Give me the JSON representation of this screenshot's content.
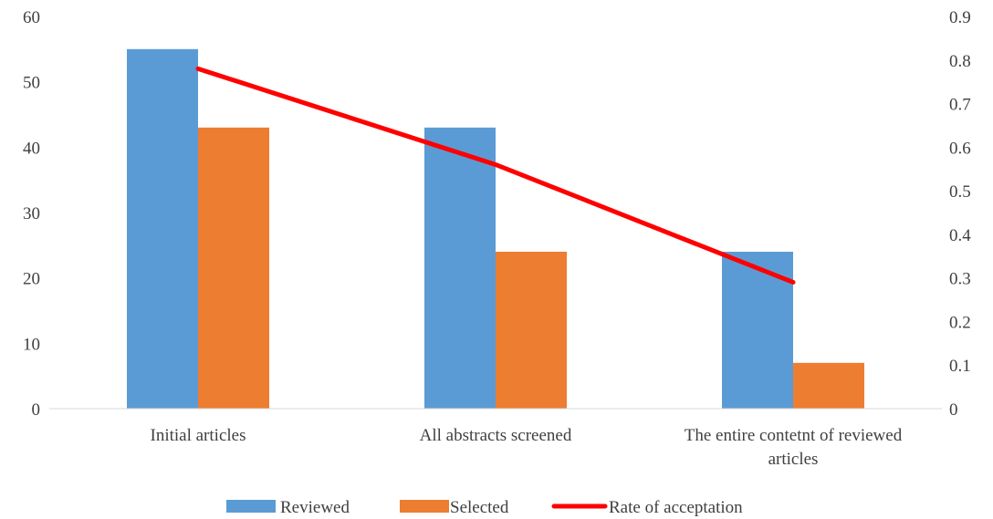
{
  "chart_data": {
    "type": "bar",
    "categories": [
      [
        "Initial articles"
      ],
      [
        "All abstracts screened"
      ],
      [
        "The entire contetnt of reviewed",
        "articles"
      ]
    ],
    "series": [
      {
        "name": "Reviewed",
        "type": "bar",
        "axis": "left",
        "color": "#5b9bd5",
        "values": [
          55,
          43,
          24
        ]
      },
      {
        "name": "Selected",
        "type": "bar",
        "axis": "left",
        "color": "#ed7d31",
        "values": [
          43,
          24,
          7
        ]
      },
      {
        "name": "Rate of acceptation",
        "type": "line",
        "axis": "right",
        "color": "#ff0000",
        "values": [
          0.78,
          0.56,
          0.29
        ]
      }
    ],
    "ylim": [
      0,
      60
    ],
    "yticks": [
      "0",
      "10",
      "20",
      "30",
      "40",
      "50",
      "60"
    ],
    "y2lim": [
      0,
      0.9
    ],
    "y2ticks": [
      "0",
      "0.1",
      "0.2",
      "0.3",
      "0.4",
      "0.5",
      "0.6",
      "0.7",
      "0.8",
      "0.9"
    ],
    "grid": false,
    "legend": "bottom-center"
  }
}
